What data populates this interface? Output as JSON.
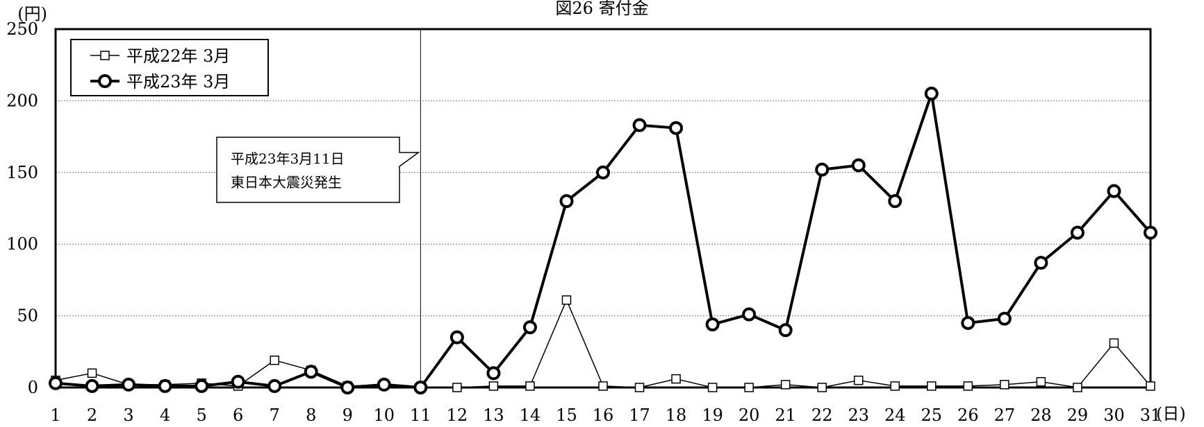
{
  "chart_data": {
    "type": "line",
    "title": "図26 寄付金",
    "ylabel": "(円)",
    "xunit": "(日)",
    "ylim": [
      0,
      250
    ],
    "yticks": [
      0,
      50,
      100,
      150,
      200,
      250
    ],
    "grid": "horizontal dotted",
    "legend_position": "top-left",
    "categories": [
      "1",
      "2",
      "3",
      "4",
      "5",
      "6",
      "7",
      "8",
      "9",
      "10",
      "11",
      "12",
      "13",
      "14",
      "15",
      "16",
      "17",
      "18",
      "19",
      "20",
      "21",
      "22",
      "23",
      "24",
      "25",
      "26",
      "27",
      "28",
      "29",
      "30",
      "31"
    ],
    "series": [
      {
        "name": "平成22年 3月",
        "marker": "square",
        "color": "#000000",
        "values": [
          5,
          10,
          2,
          2,
          3,
          1,
          19,
          12,
          1,
          2,
          0,
          0,
          1,
          1,
          61,
          1,
          0,
          6,
          0,
          0,
          2,
          0,
          5,
          1,
          1,
          1,
          2,
          4,
          0,
          31,
          1
        ]
      },
      {
        "name": "平成23年 3月",
        "marker": "circle",
        "color": "#000000",
        "values": [
          3,
          1,
          2,
          1,
          1,
          4,
          1,
          11,
          0,
          2,
          0,
          35,
          10,
          42,
          130,
          150,
          183,
          181,
          44,
          51,
          40,
          152,
          155,
          130,
          205,
          45,
          48,
          87,
          108,
          137,
          108
        ]
      }
    ],
    "annotation": {
      "lines": [
        "平成23年3月11日",
        "東日本大震災発生"
      ],
      "x": "11"
    }
  }
}
